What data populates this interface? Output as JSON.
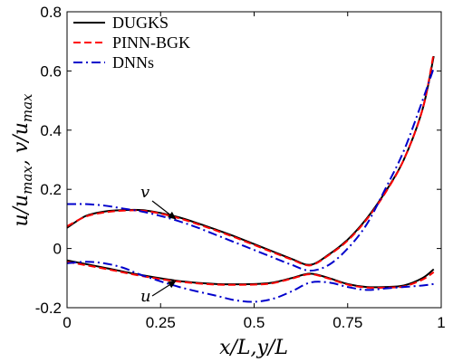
{
  "chart_data": {
    "type": "line",
    "xlabel": "x/L,y/L",
    "ylabel": "u/u_max, v/u_max",
    "ylabel_parts": {
      "u": "u",
      "slash1": "/",
      "u2": "u",
      "sub1": "max",
      "comma": ", ",
      "v": "v",
      "slash2": "/",
      "u3": "u",
      "sub2": "max"
    },
    "xlim": [
      0,
      1
    ],
    "ylim": [
      -0.2,
      0.8
    ],
    "xticks": [
      {
        "value": 0,
        "label": "0"
      },
      {
        "value": 0.25,
        "label": "0.25"
      },
      {
        "value": 0.5,
        "label": "0.5"
      },
      {
        "value": 0.75,
        "label": "0.75"
      },
      {
        "value": 1,
        "label": "1"
      }
    ],
    "yticks": [
      {
        "value": -0.2,
        "label": "-0.2"
      },
      {
        "value": 0,
        "label": "0"
      },
      {
        "value": 0.2,
        "label": "0.2"
      },
      {
        "value": 0.4,
        "label": "0.4"
      },
      {
        "value": 0.6,
        "label": "0.6"
      },
      {
        "value": 0.8,
        "label": "0.8"
      }
    ],
    "grid": false,
    "legend_position": "top-left",
    "series": [
      {
        "name": "DUGKS",
        "color": "#000000",
        "dash": "solid",
        "curve": "v",
        "x": [
          0,
          0.05,
          0.1,
          0.15,
          0.2,
          0.25,
          0.3,
          0.35,
          0.4,
          0.45,
          0.5,
          0.55,
          0.6,
          0.65,
          0.7,
          0.75,
          0.8,
          0.85,
          0.9,
          0.95,
          0.98
        ],
        "y": [
          0.07,
          0.11,
          0.125,
          0.13,
          0.13,
          0.12,
          0.105,
          0.085,
          0.063,
          0.04,
          0.015,
          -0.01,
          -0.035,
          -0.055,
          -0.02,
          0.03,
          0.1,
          0.19,
          0.3,
          0.47,
          0.65
        ]
      },
      {
        "name": "DUGKS",
        "color": "#000000",
        "dash": "solid",
        "curve": "u",
        "x": [
          0,
          0.1,
          0.2,
          0.3,
          0.4,
          0.5,
          0.55,
          0.6,
          0.65,
          0.7,
          0.75,
          0.8,
          0.85,
          0.9,
          0.95,
          0.98
        ],
        "y": [
          -0.04,
          -0.065,
          -0.09,
          -0.11,
          -0.12,
          -0.12,
          -0.115,
          -0.1,
          -0.085,
          -0.1,
          -0.12,
          -0.13,
          -0.13,
          -0.125,
          -0.1,
          -0.07
        ]
      },
      {
        "name": "PINN-BGK",
        "color": "#ff0000",
        "dash": "dashed",
        "curve": "v",
        "x": [
          0,
          0.05,
          0.1,
          0.15,
          0.2,
          0.25,
          0.3,
          0.35,
          0.4,
          0.45,
          0.5,
          0.55,
          0.6,
          0.65,
          0.7,
          0.75,
          0.8,
          0.85,
          0.9,
          0.95,
          0.98
        ],
        "y": [
          0.075,
          0.108,
          0.122,
          0.128,
          0.128,
          0.118,
          0.102,
          0.082,
          0.06,
          0.037,
          0.012,
          -0.013,
          -0.037,
          -0.057,
          -0.022,
          0.027,
          0.097,
          0.187,
          0.3,
          0.47,
          0.66
        ]
      },
      {
        "name": "PINN-BGK",
        "color": "#ff0000",
        "dash": "dashed",
        "curve": "u",
        "x": [
          0,
          0.1,
          0.2,
          0.3,
          0.4,
          0.5,
          0.55,
          0.6,
          0.65,
          0.7,
          0.75,
          0.8,
          0.85,
          0.9,
          0.95,
          0.98
        ],
        "y": [
          -0.045,
          -0.068,
          -0.093,
          -0.112,
          -0.122,
          -0.122,
          -0.117,
          -0.102,
          -0.087,
          -0.102,
          -0.122,
          -0.132,
          -0.132,
          -0.128,
          -0.105,
          -0.08
        ]
      },
      {
        "name": "DNNs",
        "color": "#0000cc",
        "dash": "dashdot",
        "curve": "v",
        "x": [
          0,
          0.05,
          0.1,
          0.15,
          0.2,
          0.25,
          0.3,
          0.35,
          0.4,
          0.45,
          0.5,
          0.55,
          0.6,
          0.65,
          0.7,
          0.75,
          0.8,
          0.85,
          0.9,
          0.95,
          0.98
        ],
        "y": [
          0.15,
          0.15,
          0.145,
          0.135,
          0.125,
          0.11,
          0.092,
          0.07,
          0.045,
          0.02,
          -0.005,
          -0.03,
          -0.055,
          -0.075,
          -0.055,
          0.0,
          0.08,
          0.2,
          0.33,
          0.5,
          0.61
        ]
      },
      {
        "name": "DNNs",
        "color": "#0000cc",
        "dash": "dashdot",
        "curve": "u",
        "x": [
          0,
          0.05,
          0.1,
          0.15,
          0.2,
          0.3,
          0.4,
          0.45,
          0.5,
          0.55,
          0.6,
          0.65,
          0.7,
          0.75,
          0.8,
          0.85,
          0.9,
          0.95,
          0.98
        ],
        "y": [
          -0.05,
          -0.045,
          -0.05,
          -0.065,
          -0.09,
          -0.13,
          -0.16,
          -0.175,
          -0.18,
          -0.17,
          -0.145,
          -0.115,
          -0.115,
          -0.13,
          -0.14,
          -0.135,
          -0.13,
          -0.125,
          -0.12
        ]
      }
    ],
    "legend": [
      {
        "label": "DUGKS",
        "color": "#000000",
        "dash": "solid"
      },
      {
        "label": "PINN-BGK",
        "color": "#ff0000",
        "dash": "dashed"
      },
      {
        "label": "DNNs",
        "color": "#0000cc",
        "dash": "dashdot"
      }
    ],
    "annotations": [
      {
        "text": "v",
        "points_to": [
          0.29,
          0.1
        ]
      },
      {
        "text": "u",
        "points_to": [
          0.29,
          -0.11
        ]
      }
    ]
  }
}
